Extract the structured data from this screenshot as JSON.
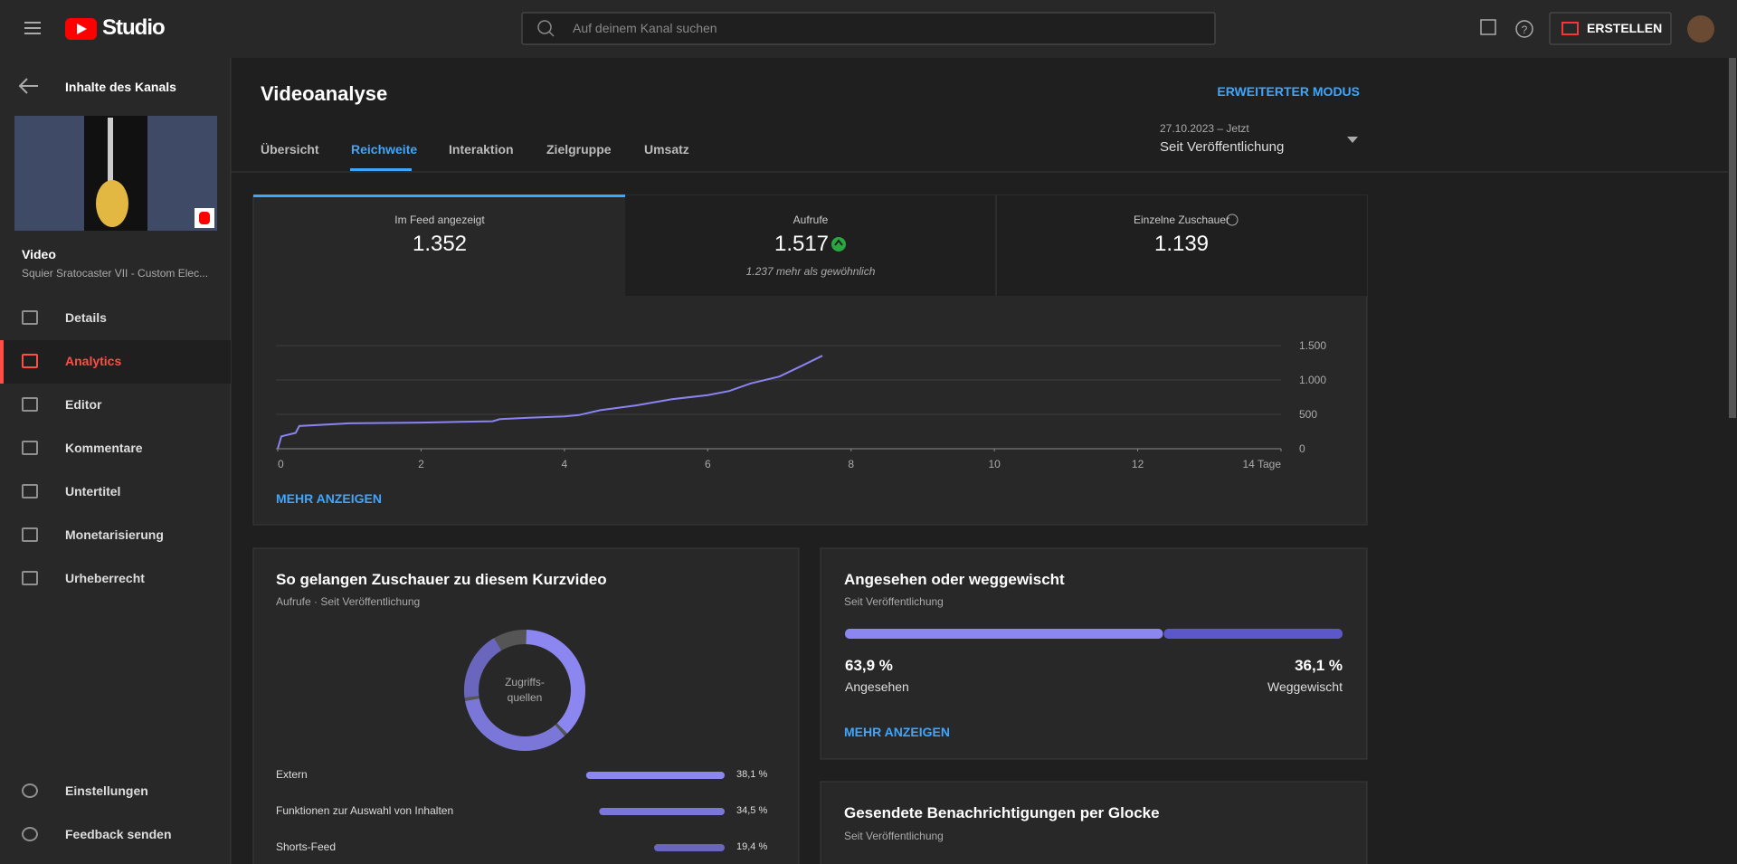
{
  "header": {
    "logo": "Studio",
    "search_placeholder": "Auf deinem Kanal suchen",
    "create": "ERSTELLEN"
  },
  "sidebar": {
    "back": "Inhalte des Kanals",
    "video_heading": "Video",
    "video_title": "Squier Sratocaster VII - Custom Elec...",
    "nav": [
      "Details",
      "Analytics",
      "Editor",
      "Kommentare",
      "Untertitel",
      "Monetarisierung",
      "Urheberrecht"
    ],
    "active_nav": 1,
    "bottom": [
      "Einstellungen",
      "Feedback senden"
    ]
  },
  "page": {
    "title": "Videoanalyse",
    "advanced": "ERWEITERTER MODUS",
    "tabs": [
      "Übersicht",
      "Reichweite",
      "Interaktion",
      "Zielgruppe",
      "Umsatz"
    ],
    "active_tab": 1,
    "date_range": "27.10.2023 – Jetzt",
    "period": "Seit Veröffentlichung"
  },
  "metrics": [
    {
      "label": "Im Feed angezeigt",
      "value": "1.352"
    },
    {
      "label": "Aufrufe",
      "value": "1.517",
      "note": "1.237 mehr als gewöhnlich"
    },
    {
      "label": "Einzelne Zuschauer",
      "value": "1.139"
    }
  ],
  "reach_chart": {
    "type": "line",
    "color": "#8a84f2",
    "x": [
      0,
      0.05,
      0.25,
      0.3,
      1,
      2,
      3,
      3.1,
      3.5,
      4,
      4.2,
      4.5,
      5,
      5.5,
      6,
      6.3,
      6.6,
      7,
      7.3,
      7.6
    ],
    "values": [
      0,
      180,
      230,
      330,
      370,
      380,
      400,
      430,
      450,
      470,
      490,
      560,
      630,
      720,
      780,
      840,
      950,
      1050,
      1200,
      1352
    ],
    "xlim": [
      0,
      14
    ],
    "xticks": [
      0,
      2,
      4,
      6,
      8,
      10,
      12,
      {
        "value": 14,
        "label": "14 Tage"
      }
    ],
    "ylim": [
      0,
      1500
    ],
    "yticks": [
      0,
      500,
      {
        "value": 1000,
        "label": "1.000"
      },
      {
        "value": 1500,
        "label": "1.500"
      }
    ],
    "more": "MEHR ANZEIGEN"
  },
  "sources_card": {
    "title": "So gelangen Zuschauer zu diesem Kurzvideo",
    "subtitle": "Aufrufe · Seit Veröffentlichung",
    "center_label": [
      "Zugriffs-",
      "quellen"
    ],
    "chart": {
      "type": "donut",
      "categories": [
        "Extern",
        "Funktionen zur Auswahl von Inhalten",
        "Shorts-Feed"
      ],
      "values": [
        38.1,
        34.5,
        19.4
      ],
      "value_labels": [
        "38,1 %",
        "34,5 %",
        "19,4 %"
      ],
      "colors": [
        "#8c87f0",
        "#7b77d9",
        "#6a66bd"
      ]
    }
  },
  "swipe_card": {
    "title": "Angesehen oder weggewischt",
    "subtitle": "Seit Veröffentlichung",
    "chart": {
      "type": "stacked-bar",
      "categories": [
        "Angesehen",
        "Weggewischt"
      ],
      "values": [
        63.9,
        36.1
      ],
      "value_labels": [
        "63,9 %",
        "36,1 %"
      ],
      "colors": [
        "#8c87f0",
        "#5d58c9"
      ]
    },
    "more": "MEHR ANZEIGEN"
  },
  "bell_card": {
    "title": "Gesendete Benachrichtigungen per Glocke",
    "subtitle": "Seit Veröffentlichung"
  }
}
